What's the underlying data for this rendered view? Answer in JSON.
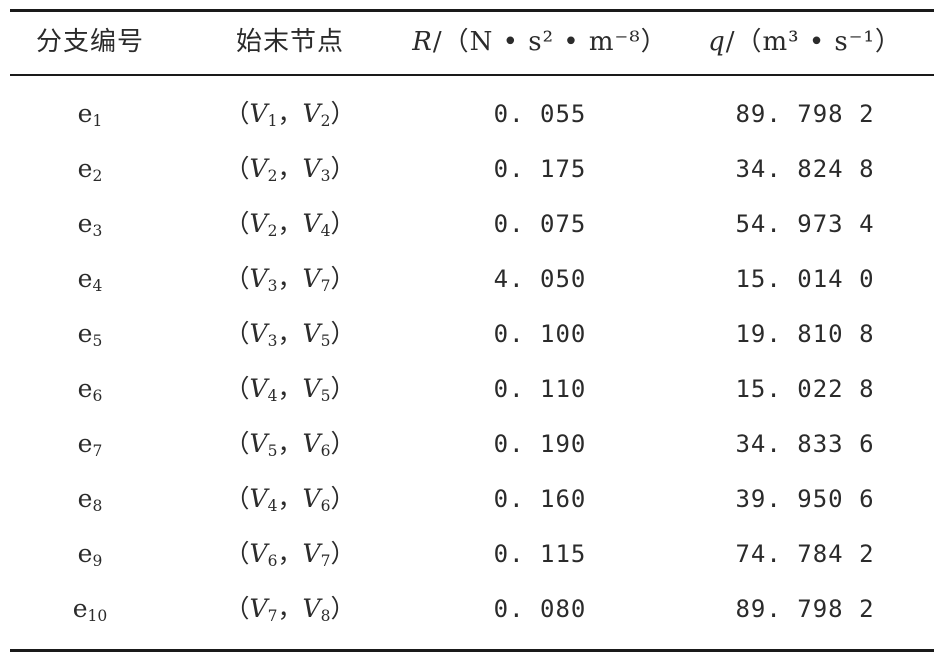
{
  "table": {
    "headers": {
      "branch": "分支编号",
      "nodes": "始末节点",
      "resistance_symbol": "R",
      "resistance_unit": "/（N • s² • m⁻⁸）",
      "flow_symbol": "q",
      "flow_unit": "/（m³ • s⁻¹）"
    },
    "rows": [
      {
        "branch_letter": "e",
        "branch_sub": "1",
        "start_sub": "1",
        "end_sub": "2",
        "R": "0. 055",
        "q": "89. 798 2"
      },
      {
        "branch_letter": "e",
        "branch_sub": "2",
        "start_sub": "2",
        "end_sub": "3",
        "R": "0. 175",
        "q": "34. 824 8"
      },
      {
        "branch_letter": "e",
        "branch_sub": "3",
        "start_sub": "2",
        "end_sub": "4",
        "R": "0. 075",
        "q": "54. 973 4"
      },
      {
        "branch_letter": "e",
        "branch_sub": "4",
        "start_sub": "3",
        "end_sub": "7",
        "R": "4. 050",
        "q": "15. 014 0"
      },
      {
        "branch_letter": "e",
        "branch_sub": "5",
        "start_sub": "3",
        "end_sub": "5",
        "R": "0. 100",
        "q": "19. 810 8"
      },
      {
        "branch_letter": "e",
        "branch_sub": "6",
        "start_sub": "4",
        "end_sub": "5",
        "R": "0. 110",
        "q": "15. 022 8"
      },
      {
        "branch_letter": "e",
        "branch_sub": "7",
        "start_sub": "5",
        "end_sub": "6",
        "R": "0. 190",
        "q": "34. 833 6"
      },
      {
        "branch_letter": "e",
        "branch_sub": "8",
        "start_sub": "4",
        "end_sub": "6",
        "R": "0. 160",
        "q": "39. 950 6"
      },
      {
        "branch_letter": "e",
        "branch_sub": "9",
        "start_sub": "6",
        "end_sub": "7",
        "R": "0. 115",
        "q": "74. 784 2"
      },
      {
        "branch_letter": "e",
        "branch_sub": "10",
        "start_sub": "7",
        "end_sub": "8",
        "R": "0. 080",
        "q": "89. 798 2"
      }
    ],
    "node_letter": "V",
    "open_paren": "（",
    "comma": "，",
    "close_paren": "）"
  }
}
